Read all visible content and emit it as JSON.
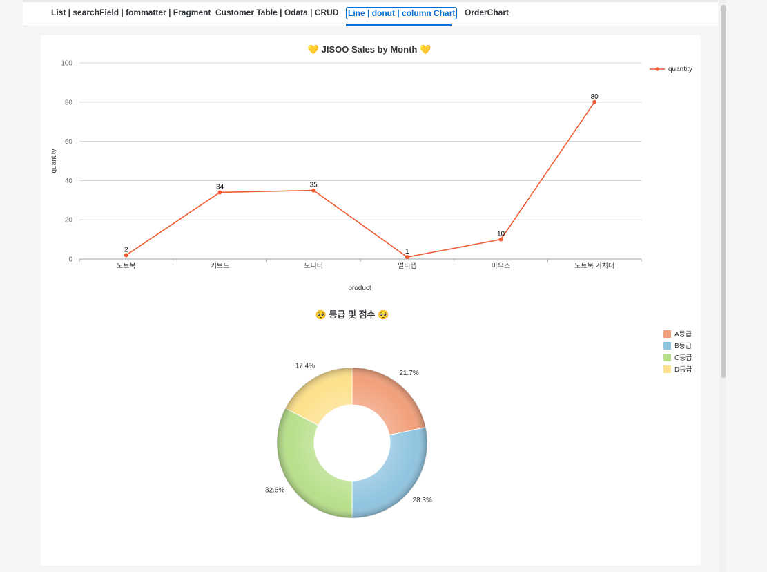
{
  "tabs": [
    {
      "label": "List | searchField | fommatter | Fragment",
      "active": false
    },
    {
      "label": "Customer Table | Odata | CRUD",
      "active": false
    },
    {
      "label": "Line | donut | column Chart",
      "active": true
    },
    {
      "label": "OrderChart",
      "active": false
    }
  ],
  "line_chart": {
    "title": "💛 JISOO Sales by Month 💛",
    "legend": "quantity",
    "line_color": "#f05b32"
  },
  "donut_chart": {
    "title": "🥺 등급 및 점수 🥺"
  },
  "chart_data": [
    {
      "type": "line",
      "title": "💛 JISOO Sales by Month 💛",
      "xlabel": "product",
      "ylabel": "quantity",
      "categories": [
        "노트북",
        "키보드",
        "모니터",
        "멀티탭",
        "마우스",
        "노트북 거치대"
      ],
      "series": [
        {
          "name": "quantity",
          "values": [
            2,
            34,
            35,
            1,
            10,
            80
          ]
        }
      ],
      "ylim": [
        0,
        100
      ],
      "yticks": [
        0,
        20,
        40,
        60,
        80,
        100
      ],
      "grid": true,
      "legend_position": "top-right"
    },
    {
      "type": "pie",
      "donut": true,
      "title": "🥺 등급 및 점수 🥺",
      "labels": [
        "A등급",
        "B등급",
        "C등급",
        "D등급"
      ],
      "values": [
        21.7,
        28.3,
        32.6,
        17.4
      ],
      "value_labels": [
        "21.7%",
        "28.3%",
        "32.6%",
        "17.4%"
      ],
      "colors": [
        "#f2a07b",
        "#8fc4e0",
        "#b7df8a",
        "#fde08a"
      ],
      "legend_position": "top-right"
    }
  ]
}
